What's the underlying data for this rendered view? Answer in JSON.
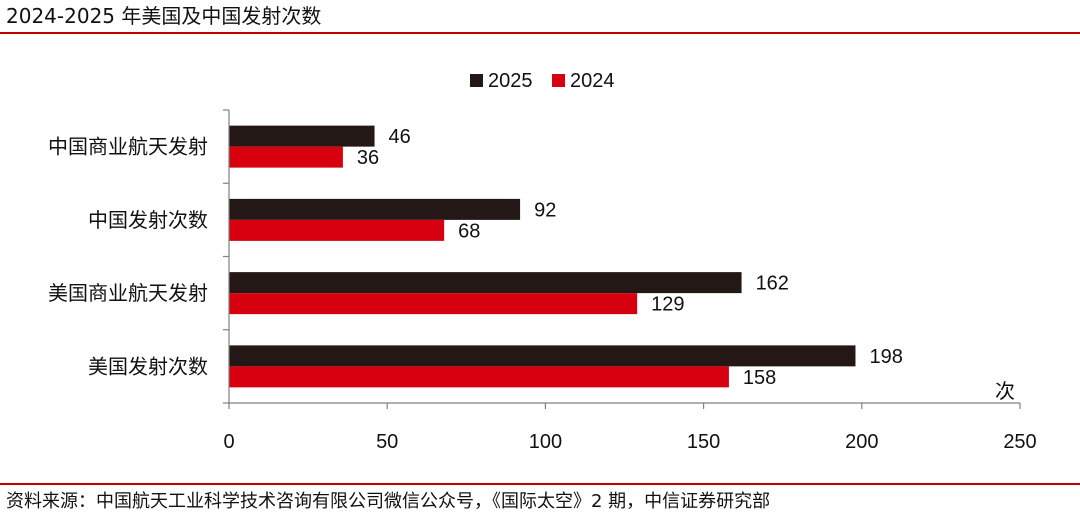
{
  "title": "2024-2025 年美国及中国发射次数",
  "source": "资料来源：中国航天工业科学技术咨询有限公司微信公众号，《国际太空》2 期，中信证券研究部",
  "chart_data": {
    "type": "bar",
    "orientation": "horizontal",
    "categories": [
      "中国商业航天发射",
      "中国发射次数",
      "美国商业航天发射",
      "美国发射次数"
    ],
    "series": [
      {
        "name": "2025",
        "values": [
          46,
          92,
          162,
          198
        ],
        "color": "#231815"
      },
      {
        "name": "2024",
        "values": [
          36,
          68,
          129,
          158
        ],
        "color": "#d7000f"
      }
    ],
    "xlim": [
      0,
      250
    ],
    "xticks": [
      0,
      50,
      100,
      150,
      200,
      250
    ],
    "unit_label": "次",
    "legend_position": "top-center",
    "grid": false
  }
}
